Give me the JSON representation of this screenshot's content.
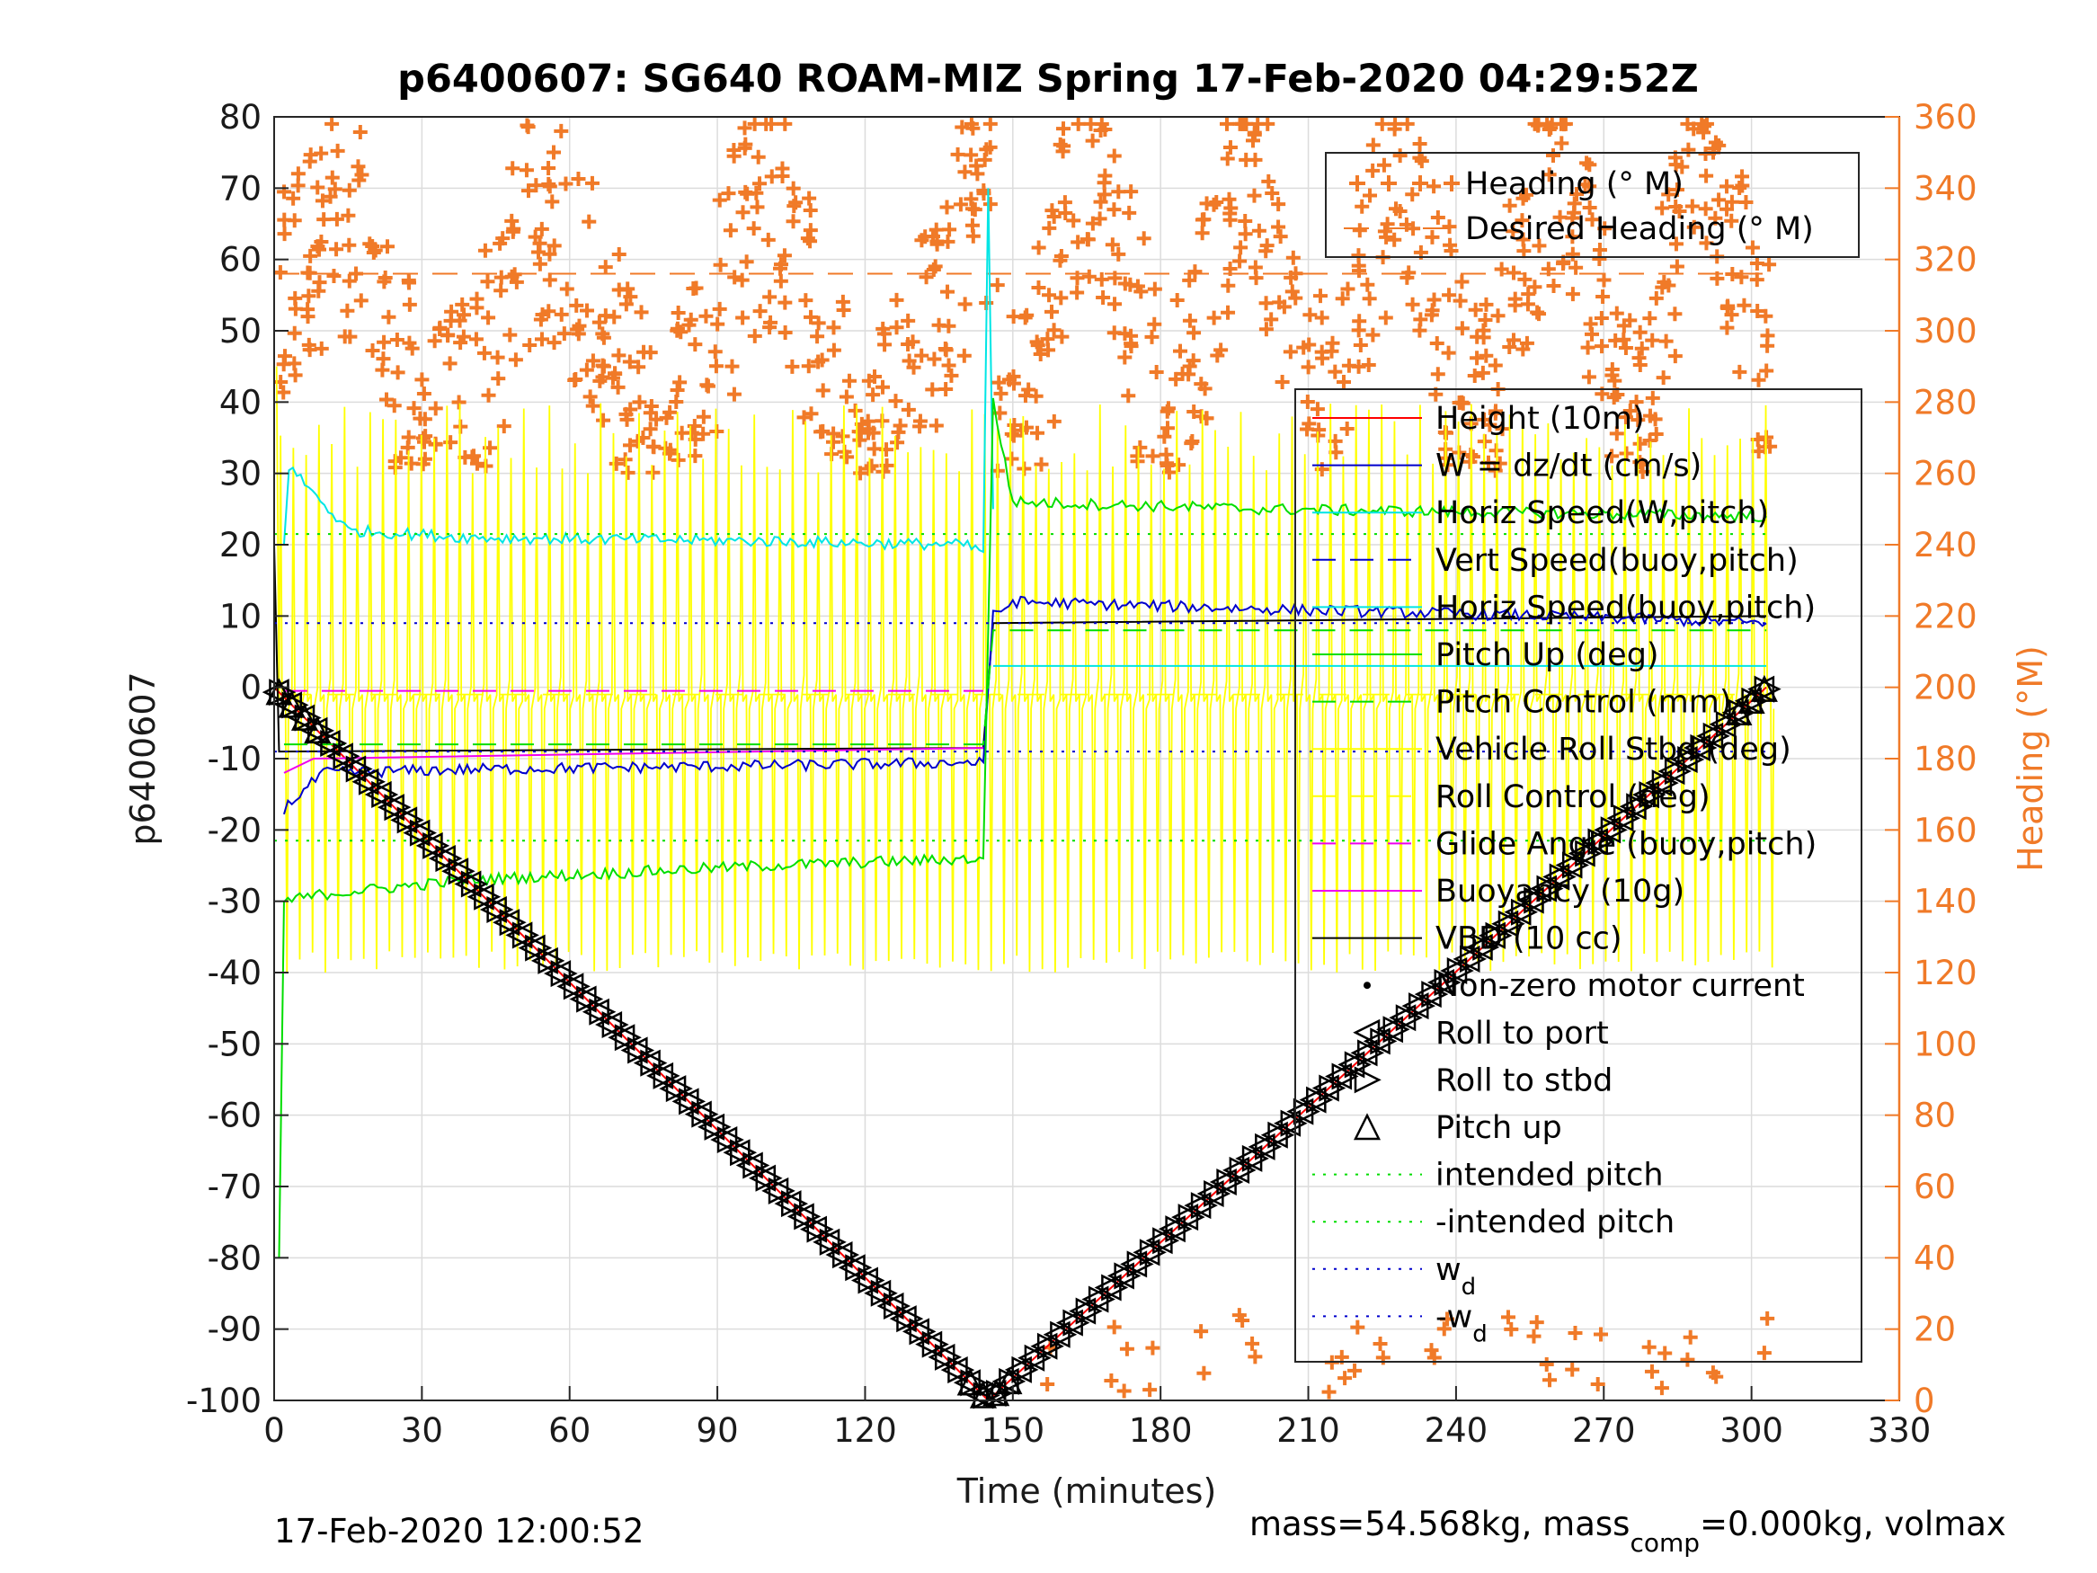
{
  "chart_data": {
    "type": "line",
    "title": "p6400607: SG640 ROAM-MIZ Spring 17-Feb-2020 04:29:52Z",
    "xlabel": "Time (minutes)",
    "ylabel": "p6400607",
    "ylabel_right": "Heading (°M)",
    "xlim": [
      0,
      330
    ],
    "ylim": [
      -100,
      80
    ],
    "ylim_right": [
      0,
      360
    ],
    "xticks": [
      "0",
      "30",
      "60",
      "90",
      "120",
      "150",
      "180",
      "210",
      "240",
      "270",
      "300",
      "330"
    ],
    "yticks": [
      "80",
      "70",
      "60",
      "50",
      "40",
      "30",
      "20",
      "10",
      "0",
      "-10",
      "-20",
      "-30",
      "-40",
      "-50",
      "-60",
      "-70",
      "-80",
      "-90",
      "-100"
    ],
    "yticks_right": [
      "360",
      "340",
      "320",
      "300",
      "280",
      "260",
      "240",
      "220",
      "200",
      "180",
      "160",
      "140",
      "120",
      "100",
      "80",
      "60",
      "40",
      "20",
      "0"
    ],
    "grid": true,
    "footer_left": "17-Feb-2020 12:00:52",
    "footer_right": "mass=54.568kg, mass",
    "footer_right_sub": "comp",
    "footer_right_tail": "=0.000kg, volmax",
    "legend_heading": [
      {
        "name": "Heading (° M)",
        "color": "#f07a28",
        "style": "marker-plus"
      },
      {
        "name": "Desired Heading (° M)",
        "color": "#f07a28",
        "style": "dashed"
      }
    ],
    "legend_main": [
      {
        "name": "Height (10m)",
        "color": "#ff0000",
        "style": "solid"
      },
      {
        "name": "W = dz/dt (cm/s)",
        "color": "#0000cc",
        "style": "solid"
      },
      {
        "name": "Horiz Speed(W,pitch)",
        "color": "#00e5e5",
        "style": "solid"
      },
      {
        "name": "Vert Speed(buoy,pitch)",
        "color": "#0000cc",
        "style": "dashed"
      },
      {
        "name": "Horiz Speed(buoy,pitch)",
        "color": "#00e5e5",
        "style": "solid"
      },
      {
        "name": "Pitch Up (deg)",
        "color": "#00dd00",
        "style": "solid"
      },
      {
        "name": "Pitch Control (mm)",
        "color": "#00dd00",
        "style": "dashed"
      },
      {
        "name": "Vehicle Roll Stbd (deg)",
        "color": "#ffff00",
        "style": "solid"
      },
      {
        "name": "Roll Control (deg)",
        "color": "#ffff00",
        "style": "dashed"
      },
      {
        "name": "Glide Angle (buoy,pitch)",
        "color": "#ee00ee",
        "style": "dashed"
      },
      {
        "name": "Buoyancy (10g)",
        "color": "#ee00ee",
        "style": "solid"
      },
      {
        "name": "VBD (10 cc)",
        "color": "#000000",
        "style": "solid"
      },
      {
        "name": "Non-zero motor current",
        "color": "#000000",
        "style": "dot"
      },
      {
        "name": "Roll to port",
        "color": "#000000",
        "style": "tri-left"
      },
      {
        "name": "Roll to stbd",
        "color": "#000000",
        "style": "tri-right"
      },
      {
        "name": "Pitch up",
        "color": "#000000",
        "style": "tri-up"
      },
      {
        "name": "intended pitch",
        "color": "#00dd00",
        "style": "dotted"
      },
      {
        "name": "-intended pitch",
        "color": "#00dd00",
        "style": "dotted"
      },
      {
        "name": "w",
        "sub": "d",
        "color": "#0000cc",
        "style": "dotted"
      },
      {
        "name": "-w",
        "sub": "d",
        "color": "#0000cc",
        "style": "dotted"
      }
    ],
    "series": [
      {
        "name": "Height (10m)",
        "color": "#ff0000",
        "x": [
          0,
          145,
          303
        ],
        "y": [
          0,
          -100,
          0
        ]
      },
      {
        "name": "VBD (10 cc)",
        "color": "#000000",
        "x": [
          0,
          1,
          144,
          146,
          303
        ],
        "y": [
          20,
          -9,
          -8.5,
          9,
          10
        ]
      },
      {
        "name": "W = dz/dt (cm/s)",
        "color": "#0000cc",
        "x": [
          2,
          10,
          40,
          100,
          144,
          146,
          150,
          200,
          260,
          303
        ],
        "y": [
          -17,
          -12,
          -11.5,
          -11,
          -10.5,
          10,
          12,
          11,
          10,
          9
        ]
      },
      {
        "name": "Horiz Speed(W,pitch)",
        "color": "#00e5e5",
        "x": [
          2,
          3,
          15,
          40,
          100,
          140,
          144,
          145,
          146
        ],
        "y": [
          20,
          31,
          22,
          21,
          20.5,
          20,
          19,
          70,
          25
        ]
      },
      {
        "name": "Horiz Speed(buoy,pitch)",
        "color": "#00e5e5",
        "x": [
          146,
          303
        ],
        "y": [
          3,
          3
        ]
      },
      {
        "name": "Pitch Up (deg)",
        "color": "#00dd00",
        "x": [
          1,
          2,
          10,
          40,
          100,
          144,
          146,
          150,
          200,
          303
        ],
        "y": [
          -80,
          -30,
          -29,
          -27,
          -25,
          -24,
          40,
          26,
          25,
          24
        ]
      },
      {
        "name": "Pitch Control (mm)",
        "color": "#00dd00",
        "x": [
          2,
          144,
          146,
          303
        ],
        "y": [
          -8,
          -8,
          8,
          8
        ]
      },
      {
        "name": "Glide Angle (buoy,pitch)",
        "color": "#ee00ee",
        "x": [
          2,
          144
        ],
        "y": [
          -0.5,
          -0.5
        ]
      },
      {
        "name": "Buoyancy (10g)",
        "color": "#ee00ee",
        "x": [
          2,
          8,
          144
        ],
        "y": [
          -12,
          -10,
          -8.5
        ]
      },
      {
        "name": "intended pitch",
        "color": "#00dd00",
        "x": [
          0,
          303
        ],
        "y": [
          21.5,
          21.5
        ]
      },
      {
        "name": "-intended pitch",
        "color": "#00dd00",
        "x": [
          0,
          303
        ],
        "y": [
          -21.5,
          -21.5
        ]
      },
      {
        "name": "w_d",
        "color": "#0000cc",
        "x": [
          0,
          303
        ],
        "y": [
          9,
          9
        ]
      },
      {
        "name": "-w_d",
        "color": "#0000cc",
        "x": [
          0,
          303
        ],
        "y": [
          -9,
          -9
        ]
      },
      {
        "name": "Desired Heading (° M)",
        "color": "#f07a28",
        "axis": "right",
        "x": [
          0,
          303
        ],
        "y": [
          316,
          316
        ]
      }
    ]
  }
}
